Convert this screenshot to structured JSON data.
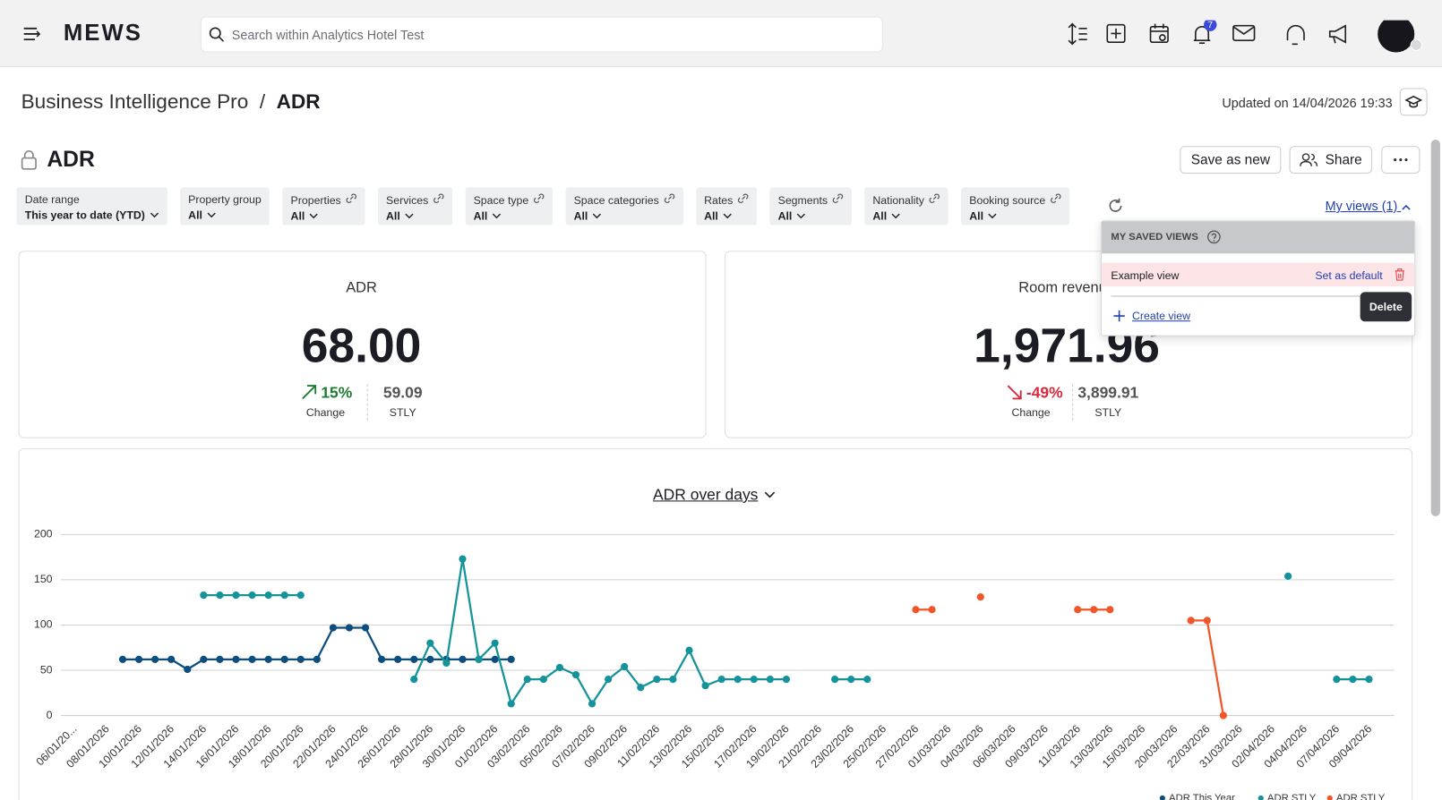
{
  "nav": {
    "logo": "MEWS",
    "search_placeholder": "Search within Analytics Hotel Test",
    "notification_count": "7"
  },
  "breadcrumb": {
    "parent": "Business Intelligence Pro",
    "separator": "/",
    "current": "ADR"
  },
  "updated": "Updated on 14/04/2026 19:33",
  "report_title": "ADR",
  "buttons": {
    "save": "Save as new",
    "share": "Share"
  },
  "filters": [
    {
      "label": "Date range",
      "value": "This year to date (YTD)",
      "linked": false
    },
    {
      "label": "Property group",
      "value": "All",
      "linked": false
    },
    {
      "label": "Properties",
      "value": "All",
      "linked": true
    },
    {
      "label": "Services",
      "value": "All",
      "linked": true
    },
    {
      "label": "Space type",
      "value": "All",
      "linked": true
    },
    {
      "label": "Space categories",
      "value": "All",
      "linked": true
    },
    {
      "label": "Rates",
      "value": "All",
      "linked": true
    },
    {
      "label": "Segments",
      "value": "All",
      "linked": true
    },
    {
      "label": "Nationality",
      "value": "All",
      "linked": true
    },
    {
      "label": "Booking source",
      "value": "All",
      "linked": true
    }
  ],
  "my_views": {
    "link": "My views (1)",
    "header": "MY SAVED VIEWS",
    "items": [
      {
        "name": "Example view",
        "action": "Set as default"
      }
    ],
    "create": "Create view",
    "tooltip": "Delete"
  },
  "kpis": [
    {
      "title": "ADR",
      "value": "68.00",
      "change": "15%",
      "direction": "up",
      "change_label": "Change",
      "stly": "59.09",
      "stly_label": "STLY"
    },
    {
      "title": "Room revenue",
      "value": "1,971.96",
      "change": "-49%",
      "direction": "down",
      "change_label": "Change",
      "stly": "3,899.91",
      "stly_label": "STLY"
    }
  ],
  "chart_data": {
    "type": "line",
    "title": "ADR over days",
    "ylim": [
      0,
      200
    ],
    "yticks": [
      0,
      50,
      100,
      150,
      200
    ],
    "grid": true,
    "categories": [
      "06/01/20...",
      null,
      "08/01/2026",
      null,
      "10/01/2026",
      null,
      "12/01/2026",
      null,
      "14/01/2026",
      null,
      "16/01/2026",
      null,
      "18/01/2026",
      null,
      "20/01/2026",
      null,
      "22/01/2026",
      null,
      "24/01/2026",
      null,
      "26/01/2026",
      null,
      "28/01/2026",
      null,
      "30/01/2026",
      null,
      "01/02/2026",
      null,
      "03/02/2026",
      null,
      "05/02/2026",
      null,
      "07/02/2026",
      null,
      "09/02/2026",
      null,
      "11/02/2026",
      null,
      "13/02/2026",
      null,
      "15/02/2026",
      null,
      "17/02/2026",
      null,
      "19/02/2026",
      null,
      "21/02/2026",
      null,
      "23/02/2026",
      null,
      "25/02/2026",
      null,
      "27/02/2026",
      null,
      "01/03/2026",
      null,
      "04/03/2026",
      null,
      "06/03/2026",
      null,
      "09/03/2026",
      null,
      "11/03/2026",
      null,
      "13/03/2026",
      null,
      "15/03/2026",
      null,
      "20/03/2026",
      null,
      "22/03/2026",
      null,
      "31/03/2026",
      null,
      "02/04/2026",
      null,
      "04/04/2026",
      null,
      "07/04/2026",
      null,
      "09/04/2026",
      null
    ],
    "series": [
      {
        "name": "ADR This Year",
        "color": "#0c4e7e",
        "values": [
          null,
          null,
          null,
          null,
          62,
          62,
          62,
          62,
          51,
          62,
          62,
          62,
          62,
          62,
          62,
          62,
          62,
          97,
          97,
          97,
          62,
          62,
          62,
          62,
          62,
          62,
          62,
          62,
          62,
          null,
          null,
          null,
          null,
          null,
          null,
          null,
          null,
          null,
          null,
          null,
          null,
          null,
          null,
          null,
          null,
          null,
          null,
          null,
          null,
          null,
          null,
          null,
          null,
          null,
          null,
          null,
          null,
          null,
          null,
          null,
          null,
          null,
          null,
          null,
          null,
          null,
          null,
          null,
          null,
          null,
          null,
          null,
          null,
          null,
          null,
          null,
          null,
          null,
          null,
          null,
          null,
          null
        ]
      },
      {
        "name": "ADR STLY",
        "color": "#14939a",
        "values": [
          null,
          null,
          null,
          null,
          null,
          null,
          null,
          null,
          null,
          133,
          133,
          133,
          133,
          133,
          133,
          133,
          null,
          null,
          null,
          null,
          null,
          null,
          40,
          80,
          58,
          173,
          62,
          80,
          13,
          40,
          40,
          53,
          45,
          13,
          40,
          54,
          31,
          40,
          40,
          72,
          33,
          40,
          40,
          40,
          40,
          40,
          null,
          null,
          40,
          40,
          40,
          null,
          null,
          null,
          null,
          null,
          null,
          null,
          null,
          null,
          null,
          null,
          null,
          null,
          null,
          null,
          null,
          null,
          null,
          null,
          null,
          null,
          null,
          null,
          null,
          null,
          154,
          null,
          null,
          40,
          40,
          40
        ]
      },
      {
        "name": "ADR STLY",
        "color": "#f0562a",
        "values": [
          null,
          null,
          null,
          null,
          null,
          null,
          null,
          null,
          null,
          null,
          null,
          null,
          null,
          null,
          null,
          null,
          null,
          null,
          null,
          null,
          null,
          null,
          null,
          null,
          null,
          null,
          null,
          null,
          null,
          null,
          null,
          null,
          null,
          null,
          null,
          null,
          null,
          null,
          null,
          null,
          null,
          null,
          null,
          null,
          null,
          null,
          null,
          null,
          null,
          null,
          null,
          null,
          null,
          117,
          117,
          null,
          null,
          131,
          null,
          null,
          null,
          null,
          null,
          117,
          117,
          117,
          null,
          null,
          null,
          null,
          105,
          105,
          0,
          null,
          null,
          null,
          null,
          null,
          null,
          null,
          null,
          null
        ]
      }
    ]
  }
}
